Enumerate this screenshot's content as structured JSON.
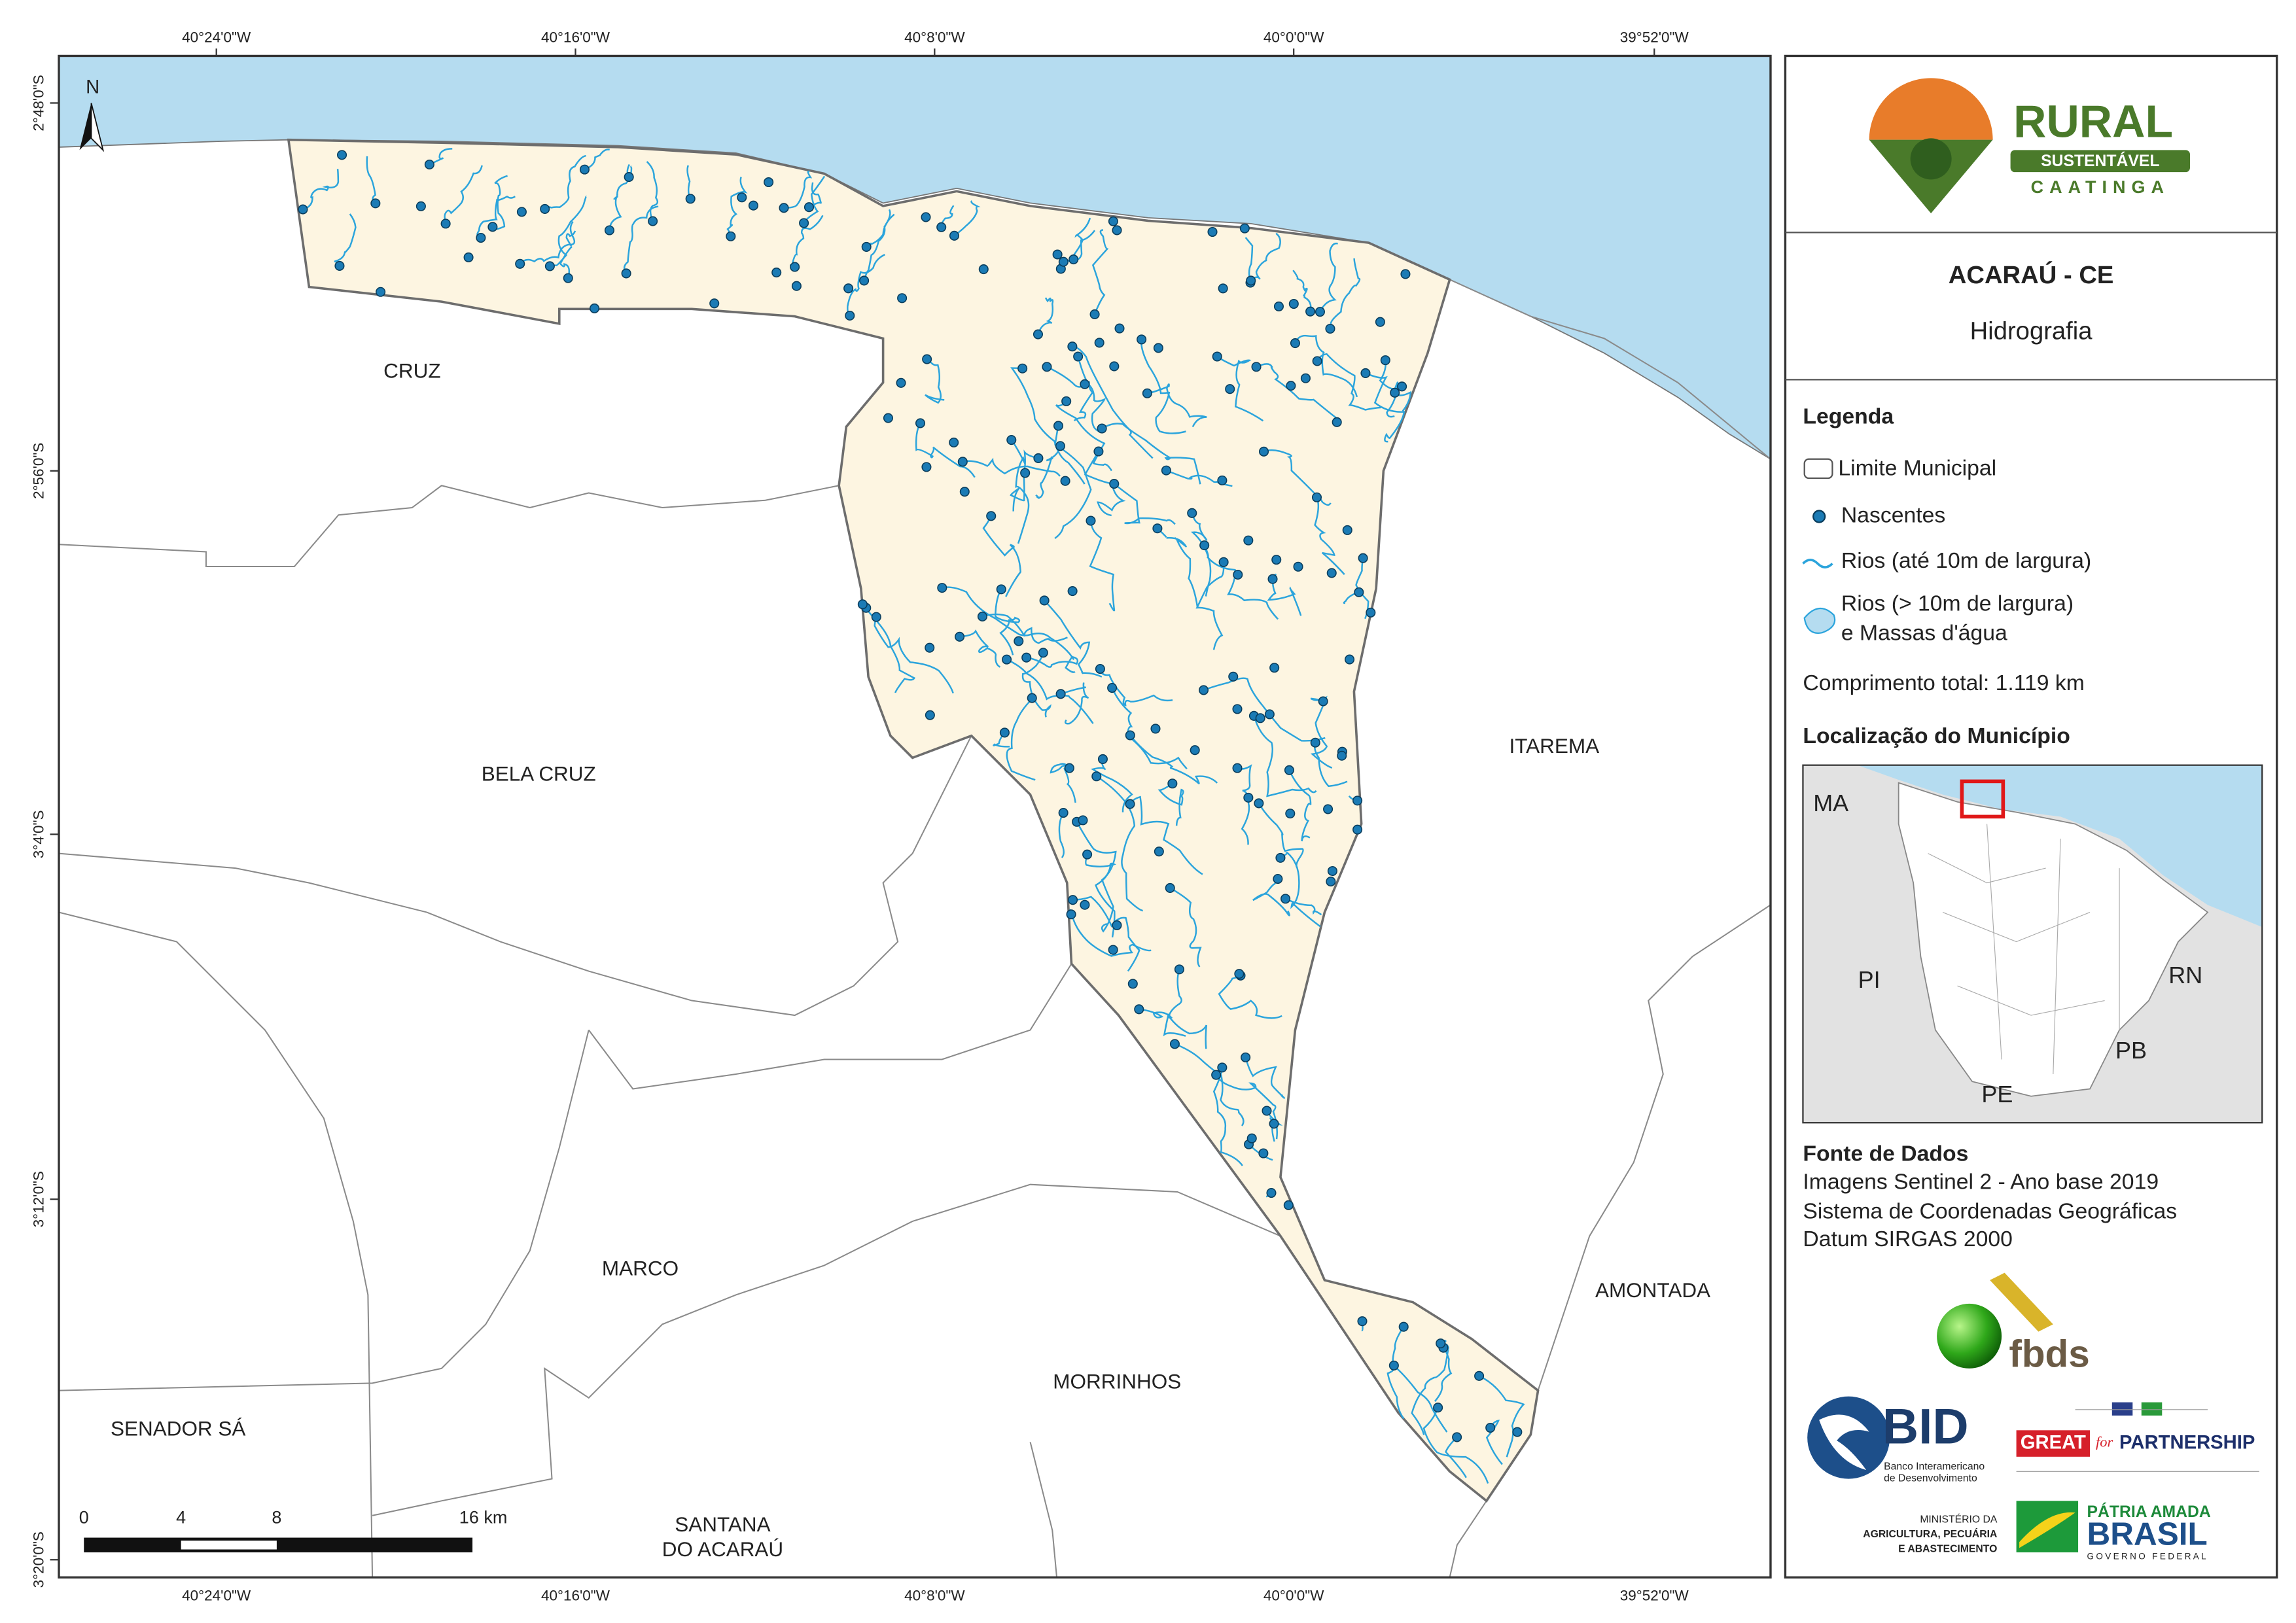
{
  "map": {
    "longitude_labels": [
      "40°24'0\"W",
      "40°16'0\"W",
      "40°8'0\"W",
      "40°0'0\"W",
      "39°52'0\"W"
    ],
    "latitude_labels": [
      "2°48'0\"S",
      "2°56'0\"S",
      "3°4'0\"S",
      "3°12'0\"S",
      "3°20'0\"S"
    ],
    "municipalities": [
      "CRUZ",
      "BELA CRUZ",
      "ITAREMA",
      "MARCO",
      "MORRINHOS",
      "AMONTADA",
      "SENADOR SÁ"
    ],
    "santana_do_acarau": [
      "SANTANA",
      "DO ACARAÚ"
    ],
    "north_arrow": "N",
    "scale_bar": [
      "0",
      "4",
      "8",
      "16 km"
    ]
  },
  "panel": {
    "logo": {
      "name": "RURAL",
      "band": "SUSTENTÁVEL",
      "region": "CAATINGA"
    },
    "title": "ACARAÚ - CE",
    "subtitle": "Hidrografia",
    "legend": {
      "title": "Legenda",
      "items": [
        "Limite Municipal",
        "Nascentes",
        "Rios (até 10m de largura)",
        "Rios (> 10m de largura)",
        "e Massas d'água"
      ],
      "total": "Comprimento total:  1.119 km"
    },
    "location": {
      "title": "Localização do Município",
      "states": [
        "MA",
        "PI",
        "RN",
        "PB",
        "PE"
      ]
    },
    "sources": {
      "title": "Fonte de Dados",
      "lines": [
        "Imagens Sentinel 2 - Ano base 2019",
        "Sistema de Coordenadas Geográficas",
        "Datum SIRGAS 2000"
      ]
    },
    "partners": {
      "fbds": "fbds",
      "bid": "BID",
      "bid_name": [
        "Banco Interamericano",
        "de Desenvolvimento"
      ],
      "great": "GREAT",
      "great_for": "for",
      "great_partnership": "PARTNERSHIP",
      "ministry": [
        "MINISTÉRIO DA",
        "AGRICULTURA, PECUÁRIA",
        "E ABASTECIMENTO"
      ],
      "brasil_top": "PÁTRIA AMADA",
      "brasil": "BRASIL",
      "brasil_bottom": "GOVERNO FEDERAL"
    }
  }
}
